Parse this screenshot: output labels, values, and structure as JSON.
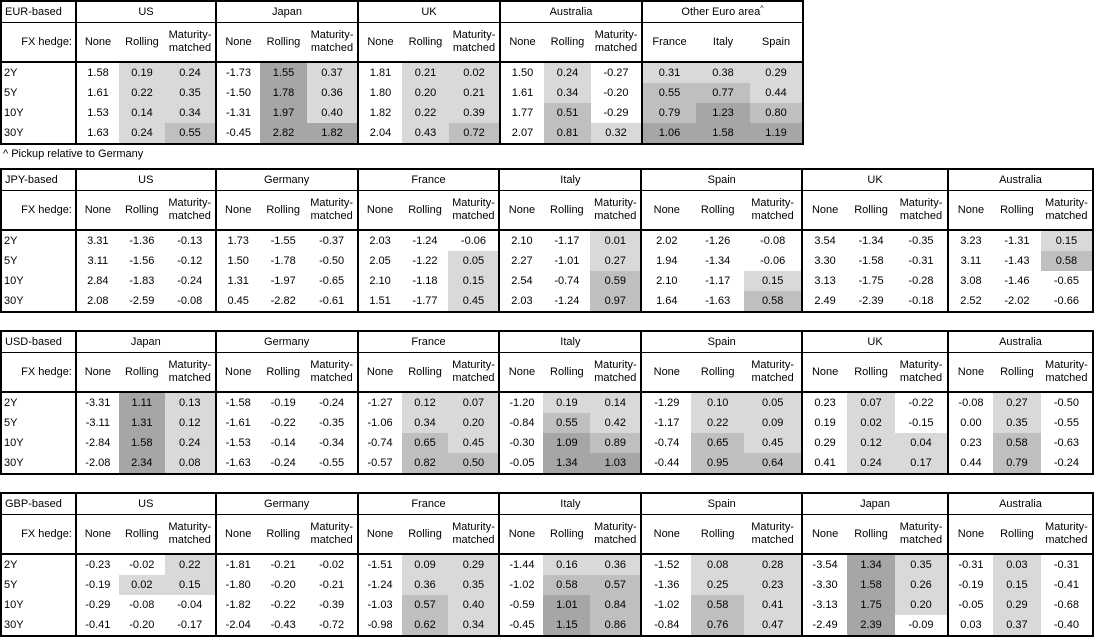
{
  "note": "^ Pickup relative to Germany",
  "fx_hedge_label": "FX hedge:",
  "tenors": [
    "2Y",
    "5Y",
    "10Y",
    "30Y"
  ],
  "hedge_columns": [
    "None",
    "Rolling",
    "Maturity-matched"
  ],
  "colors": {
    "shade_light": "#d9d9d9",
    "shade_medium": "#bfbfbf",
    "shade_dark": "#a6a6a6",
    "border": "#000000",
    "background": "#ffffff"
  },
  "shading_rule": {
    "light_above": 0,
    "medium_at": 0.5,
    "dark_at": 1.0,
    "none_columns_unshaded": true
  },
  "tables": [
    {
      "base": "EUR-based",
      "groups": [
        {
          "name": "US",
          "columns": [
            "None",
            "Rolling",
            "Maturity-matched"
          ],
          "shade_all": false,
          "rows": [
            [
              "1.58",
              "0.19",
              "0.24"
            ],
            [
              "1.61",
              "0.22",
              "0.35"
            ],
            [
              "1.53",
              "0.14",
              "0.34"
            ],
            [
              "1.63",
              "0.24",
              "0.55"
            ]
          ]
        },
        {
          "name": "Japan",
          "columns": [
            "None",
            "Rolling",
            "Maturity-matched"
          ],
          "shade_all": false,
          "rows": [
            [
              "-1.73",
              "1.55",
              "0.37"
            ],
            [
              "-1.50",
              "1.78",
              "0.36"
            ],
            [
              "-1.31",
              "1.97",
              "0.40"
            ],
            [
              "-0.45",
              "2.82",
              "1.82"
            ]
          ]
        },
        {
          "name": "UK",
          "columns": [
            "None",
            "Rolling",
            "Maturity-matched"
          ],
          "shade_all": false,
          "rows": [
            [
              "1.81",
              "0.21",
              "0.02"
            ],
            [
              "1.80",
              "0.20",
              "0.21"
            ],
            [
              "1.82",
              "0.22",
              "0.39"
            ],
            [
              "2.04",
              "0.43",
              "0.72"
            ]
          ]
        },
        {
          "name": "Australia",
          "columns": [
            "None",
            "Rolling",
            "Maturity-matched"
          ],
          "shade_all": false,
          "rows": [
            [
              "1.50",
              "0.24",
              "-0.27"
            ],
            [
              "1.61",
              "0.34",
              "-0.20"
            ],
            [
              "1.77",
              "0.51",
              "-0.29"
            ],
            [
              "2.07",
              "0.81",
              "0.32"
            ]
          ]
        },
        {
          "name": "Other Euro area",
          "footnote_marker": "^",
          "columns": [
            "France",
            "Italy",
            "Spain"
          ],
          "shade_all": true,
          "rows": [
            [
              "0.31",
              "0.38",
              "0.29"
            ],
            [
              "0.55",
              "0.77",
              "0.44"
            ],
            [
              "0.79",
              "1.23",
              "0.80"
            ],
            [
              "1.06",
              "1.58",
              "1.19"
            ]
          ]
        }
      ]
    },
    {
      "base": "JPY-based",
      "groups": [
        {
          "name": "US",
          "columns": [
            "None",
            "Rolling",
            "Maturity-matched"
          ],
          "shade_all": false,
          "rows": [
            [
              "3.31",
              "-1.36",
              "-0.13"
            ],
            [
              "3.11",
              "-1.56",
              "-0.12"
            ],
            [
              "2.84",
              "-1.83",
              "-0.24"
            ],
            [
              "2.08",
              "-2.59",
              "-0.08"
            ]
          ]
        },
        {
          "name": "Germany",
          "columns": [
            "None",
            "Rolling",
            "Maturity-matched"
          ],
          "shade_all": false,
          "rows": [
            [
              "1.73",
              "-1.55",
              "-0.37"
            ],
            [
              "1.50",
              "-1.78",
              "-0.50"
            ],
            [
              "1.31",
              "-1.97",
              "-0.65"
            ],
            [
              "0.45",
              "-2.82",
              "-0.61"
            ]
          ]
        },
        {
          "name": "France",
          "columns": [
            "None",
            "Rolling",
            "Maturity-matched"
          ],
          "shade_all": false,
          "rows": [
            [
              "2.03",
              "-1.24",
              "-0.06"
            ],
            [
              "2.05",
              "-1.22",
              "0.05"
            ],
            [
              "2.10",
              "-1.18",
              "0.15"
            ],
            [
              "1.51",
              "-1.77",
              "0.45"
            ]
          ]
        },
        {
          "name": "Italy",
          "columns": [
            "None",
            "Rolling",
            "Maturity-matched"
          ],
          "shade_all": false,
          "rows": [
            [
              "2.10",
              "-1.17",
              "0.01"
            ],
            [
              "2.27",
              "-1.01",
              "0.27"
            ],
            [
              "2.54",
              "-0.74",
              "0.59"
            ],
            [
              "2.03",
              "-1.24",
              "0.97"
            ]
          ]
        },
        {
          "name": "Spain",
          "columns": [
            "None",
            "Rolling",
            "Maturity-matched"
          ],
          "shade_all": false,
          "rows": [
            [
              "2.02",
              "-1.26",
              "-0.08"
            ],
            [
              "1.94",
              "-1.34",
              "-0.06"
            ],
            [
              "2.10",
              "-1.17",
              "0.15"
            ],
            [
              "1.64",
              "-1.63",
              "0.58"
            ]
          ]
        },
        {
          "name": "UK",
          "columns": [
            "None",
            "Rolling",
            "Maturity-matched"
          ],
          "shade_all": false,
          "rows": [
            [
              "3.54",
              "-1.34",
              "-0.35"
            ],
            [
              "3.30",
              "-1.58",
              "-0.31"
            ],
            [
              "3.13",
              "-1.75",
              "-0.28"
            ],
            [
              "2.49",
              "-2.39",
              "-0.18"
            ]
          ]
        },
        {
          "name": "Australia",
          "columns": [
            "None",
            "Rolling",
            "Maturity-matched"
          ],
          "shade_all": false,
          "rows": [
            [
              "3.23",
              "-1.31",
              "0.15"
            ],
            [
              "3.11",
              "-1.43",
              "0.58"
            ],
            [
              "3.08",
              "-1.46",
              "-0.65"
            ],
            [
              "2.52",
              "-2.02",
              "-0.66"
            ]
          ]
        }
      ]
    },
    {
      "base": "USD-based",
      "groups": [
        {
          "name": "Japan",
          "columns": [
            "None",
            "Rolling",
            "Maturity-matched"
          ],
          "shade_all": false,
          "rows": [
            [
              "-3.31",
              "1.11",
              "0.13"
            ],
            [
              "-3.11",
              "1.31",
              "0.12"
            ],
            [
              "-2.84",
              "1.58",
              "0.24"
            ],
            [
              "-2.08",
              "2.34",
              "0.08"
            ]
          ]
        },
        {
          "name": "Germany",
          "columns": [
            "None",
            "Rolling",
            "Maturity-matched"
          ],
          "shade_all": false,
          "rows": [
            [
              "-1.58",
              "-0.19",
              "-0.24"
            ],
            [
              "-1.61",
              "-0.22",
              "-0.35"
            ],
            [
              "-1.53",
              "-0.14",
              "-0.34"
            ],
            [
              "-1.63",
              "-0.24",
              "-0.55"
            ]
          ]
        },
        {
          "name": "France",
          "columns": [
            "None",
            "Rolling",
            "Maturity-matched"
          ],
          "shade_all": false,
          "rows": [
            [
              "-1.27",
              "0.12",
              "0.07"
            ],
            [
              "-1.06",
              "0.34",
              "0.20"
            ],
            [
              "-0.74",
              "0.65",
              "0.45"
            ],
            [
              "-0.57",
              "0.82",
              "0.50"
            ]
          ]
        },
        {
          "name": "Italy",
          "columns": [
            "None",
            "Rolling",
            "Maturity-matched"
          ],
          "shade_all": false,
          "rows": [
            [
              "-1.20",
              "0.19",
              "0.14"
            ],
            [
              "-0.84",
              "0.55",
              "0.42"
            ],
            [
              "-0.30",
              "1.09",
              "0.89"
            ],
            [
              "-0.05",
              "1.34",
              "1.03"
            ]
          ]
        },
        {
          "name": "Spain",
          "columns": [
            "None",
            "Rolling",
            "Maturity-matched"
          ],
          "shade_all": false,
          "rows": [
            [
              "-1.29",
              "0.10",
              "0.05"
            ],
            [
              "-1.17",
              "0.22",
              "0.09"
            ],
            [
              "-0.74",
              "0.65",
              "0.45"
            ],
            [
              "-0.44",
              "0.95",
              "0.64"
            ]
          ]
        },
        {
          "name": "UK",
          "columns": [
            "None",
            "Rolling",
            "Maturity-matched"
          ],
          "shade_all": false,
          "rows": [
            [
              "0.23",
              "0.07",
              "-0.22"
            ],
            [
              "0.19",
              "0.02",
              "-0.15"
            ],
            [
              "0.29",
              "0.12",
              "0.04"
            ],
            [
              "0.41",
              "0.24",
              "0.17"
            ]
          ]
        },
        {
          "name": "Australia",
          "columns": [
            "None",
            "Rolling",
            "Maturity-matched"
          ],
          "shade_all": false,
          "rows": [
            [
              "-0.08",
              "0.27",
              "-0.50"
            ],
            [
              "0.00",
              "0.35",
              "-0.55"
            ],
            [
              "0.23",
              "0.58",
              "-0.63"
            ],
            [
              "0.44",
              "0.79",
              "-0.24"
            ]
          ]
        }
      ]
    },
    {
      "base": "GBP-based",
      "groups": [
        {
          "name": "US",
          "columns": [
            "None",
            "Rolling",
            "Maturity-matched"
          ],
          "shade_all": false,
          "rows": [
            [
              "-0.23",
              "-0.02",
              "0.22"
            ],
            [
              "-0.19",
              "0.02",
              "0.15"
            ],
            [
              "-0.29",
              "-0.08",
              "-0.04"
            ],
            [
              "-0.41",
              "-0.20",
              "-0.17"
            ]
          ]
        },
        {
          "name": "Germany",
          "columns": [
            "None",
            "Rolling",
            "Maturity-matched"
          ],
          "shade_all": false,
          "rows": [
            [
              "-1.81",
              "-0.21",
              "-0.02"
            ],
            [
              "-1.80",
              "-0.20",
              "-0.21"
            ],
            [
              "-1.82",
              "-0.22",
              "-0.39"
            ],
            [
              "-2.04",
              "-0.43",
              "-0.72"
            ]
          ]
        },
        {
          "name": "France",
          "columns": [
            "None",
            "Rolling",
            "Maturity-matched"
          ],
          "shade_all": false,
          "rows": [
            [
              "-1.51",
              "0.09",
              "0.29"
            ],
            [
              "-1.24",
              "0.36",
              "0.35"
            ],
            [
              "-1.03",
              "0.57",
              "0.40"
            ],
            [
              "-0.98",
              "0.62",
              "0.34"
            ]
          ]
        },
        {
          "name": "Italy",
          "columns": [
            "None",
            "Rolling",
            "Maturity-matched"
          ],
          "shade_all": false,
          "rows": [
            [
              "-1.44",
              "0.16",
              "0.36"
            ],
            [
              "-1.02",
              "0.58",
              "0.57"
            ],
            [
              "-0.59",
              "1.01",
              "0.84"
            ],
            [
              "-0.45",
              "1.15",
              "0.86"
            ]
          ]
        },
        {
          "name": "Spain",
          "columns": [
            "None",
            "Rolling",
            "Maturity-matched"
          ],
          "shade_all": false,
          "rows": [
            [
              "-1.52",
              "0.08",
              "0.28"
            ],
            [
              "-1.36",
              "0.25",
              "0.23"
            ],
            [
              "-1.02",
              "0.58",
              "0.41"
            ],
            [
              "-0.84",
              "0.76",
              "0.47"
            ]
          ]
        },
        {
          "name": "Japan",
          "columns": [
            "None",
            "Rolling",
            "Maturity-matched"
          ],
          "shade_all": false,
          "rows": [
            [
              "-3.54",
              "1.34",
              "0.35"
            ],
            [
              "-3.30",
              "1.58",
              "0.26"
            ],
            [
              "-3.13",
              "1.75",
              "0.20"
            ],
            [
              "-2.49",
              "2.39",
              "-0.09"
            ]
          ]
        },
        {
          "name": "Australia",
          "columns": [
            "None",
            "Rolling",
            "Maturity-matched"
          ],
          "shade_all": false,
          "rows": [
            [
              "-0.31",
              "0.03",
              "-0.31"
            ],
            [
              "-0.19",
              "0.15",
              "-0.41"
            ],
            [
              "-0.05",
              "0.29",
              "-0.68"
            ],
            [
              "0.03",
              "0.37",
              "-0.40"
            ]
          ]
        }
      ]
    }
  ]
}
